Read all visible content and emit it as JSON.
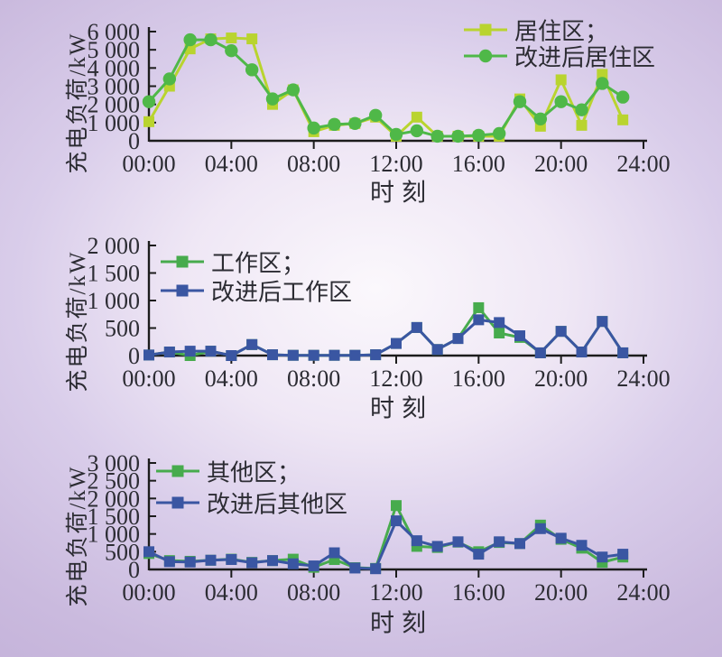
{
  "figure_title": "",
  "palette": {
    "background_center": "#fbf8fc",
    "background_light": "#efe7f5",
    "background_mid": "#d9cdea",
    "background_deep": "#cabade",
    "background_edge": "#c2b0d8",
    "axis": "#1c1c1c",
    "text": "#2c2c33",
    "residential_yellowgreen": "#b9d42f",
    "improved_residential_green": "#4fb848",
    "work_green": "#47ab4d",
    "improved_blue": "#3a56a2"
  },
  "chart_data": [
    {
      "id": "residential",
      "type": "line",
      "ylabel": "充电负荷/kW",
      "xlabel": "时刻",
      "ylim": [
        0,
        6000
      ],
      "xlim_hours": [
        0,
        24
      ],
      "grid": false,
      "legend_position": "top-right-inside",
      "ytick_labels": [
        "0",
        "1 000",
        "2 000",
        "3 000",
        "4 000",
        "5 000",
        "6 000"
      ],
      "xtick_labels": [
        "00:00",
        "04:00",
        "08:00",
        "12:00",
        "16:00",
        "20:00",
        "24:00"
      ],
      "x_hours": [
        0,
        1,
        2,
        3,
        4,
        5,
        6,
        7,
        8,
        9,
        10,
        11,
        12,
        13,
        14,
        15,
        16,
        17,
        18,
        19,
        20,
        21,
        22,
        23
      ],
      "series": [
        {
          "id": "residential",
          "name": "居住区",
          "label": "居住区；",
          "marker": "square",
          "color": "#b9d42f",
          "values": [
            1050,
            3000,
            5050,
            5600,
            5650,
            5600,
            2000,
            2800,
            500,
            850,
            950,
            1300,
            250,
            1300,
            250,
            250,
            250,
            250,
            2300,
            800,
            3350,
            850,
            3650,
            1150
          ]
        },
        {
          "id": "improved-residential",
          "name": "改进后居住区",
          "label": "改进后居住区",
          "marker": "circle",
          "color": "#4fb848",
          "values": [
            2150,
            3400,
            5550,
            5550,
            4950,
            3900,
            2300,
            2800,
            700,
            900,
            950,
            1400,
            350,
            550,
            250,
            250,
            300,
            400,
            2150,
            1200,
            2150,
            1700,
            3150,
            2400
          ]
        }
      ]
    },
    {
      "id": "work",
      "type": "line",
      "ylabel": "充电负荷/kW",
      "xlabel": "时刻",
      "ylim": [
        0,
        2000
      ],
      "xlim_hours": [
        0,
        24
      ],
      "grid": false,
      "legend_position": "top-left-inside",
      "ytick_labels": [
        "0",
        "500",
        "1 000",
        "1 500",
        "2 000"
      ],
      "xtick_labels": [
        "00:00",
        "04:00",
        "08:00",
        "12:00",
        "16:00",
        "20:00",
        "24:00"
      ],
      "x_hours": [
        0,
        1,
        2,
        3,
        4,
        5,
        6,
        7,
        8,
        9,
        10,
        11,
        12,
        13,
        14,
        15,
        16,
        17,
        18,
        19,
        20,
        21,
        22,
        23
      ],
      "series": [
        {
          "id": "work",
          "name": "工作区",
          "label": "工作区；",
          "marker": "square",
          "color": "#47ab4d",
          "values": [
            10,
            65,
            0,
            80,
            0,
            200,
            15,
            5,
            5,
            5,
            5,
            15,
            220,
            510,
            110,
            310,
            870,
            410,
            330,
            50,
            440,
            65,
            620,
            50
          ]
        },
        {
          "id": "improved-work",
          "name": "改进后工作区",
          "label": "改进后工作区",
          "marker": "square",
          "color": "#3a56a2",
          "values": [
            10,
            65,
            80,
            80,
            0,
            200,
            15,
            5,
            5,
            5,
            5,
            15,
            220,
            510,
            110,
            310,
            650,
            600,
            360,
            50,
            440,
            65,
            620,
            50
          ]
        }
      ]
    },
    {
      "id": "other",
      "type": "line",
      "ylabel": "充电负荷/kW",
      "xlabel": "时刻",
      "ylim": [
        0,
        3000
      ],
      "xlim_hours": [
        0,
        24
      ],
      "grid": false,
      "legend_position": "top-left-inside",
      "ytick_labels": [
        "0",
        "500",
        "1 000",
        "1 500",
        "2 000",
        "2 500",
        "3 000"
      ],
      "xtick_labels": [
        "00:00",
        "04:00",
        "08:00",
        "12:00",
        "16:00",
        "20:00",
        "24:00"
      ],
      "x_hours": [
        0,
        1,
        2,
        3,
        4,
        5,
        6,
        7,
        8,
        9,
        10,
        11,
        12,
        13,
        14,
        15,
        16,
        17,
        18,
        19,
        20,
        21,
        22,
        23
      ],
      "series": [
        {
          "id": "other",
          "name": "其他区",
          "label": "其他区；",
          "marker": "square",
          "color": "#47ab4d",
          "values": [
            450,
            250,
            230,
            260,
            290,
            200,
            250,
            290,
            60,
            280,
            50,
            30,
            1800,
            650,
            620,
            770,
            500,
            760,
            730,
            1250,
            850,
            600,
            200,
            350
          ]
        },
        {
          "id": "improved-other",
          "name": "改进后其他区",
          "label": "改进后其他区",
          "marker": "square",
          "color": "#3a56a2",
          "values": [
            500,
            220,
            210,
            260,
            280,
            190,
            250,
            160,
            100,
            470,
            40,
            20,
            1370,
            810,
            650,
            780,
            430,
            780,
            730,
            1150,
            880,
            680,
            350,
            430
          ]
        }
      ]
    }
  ]
}
